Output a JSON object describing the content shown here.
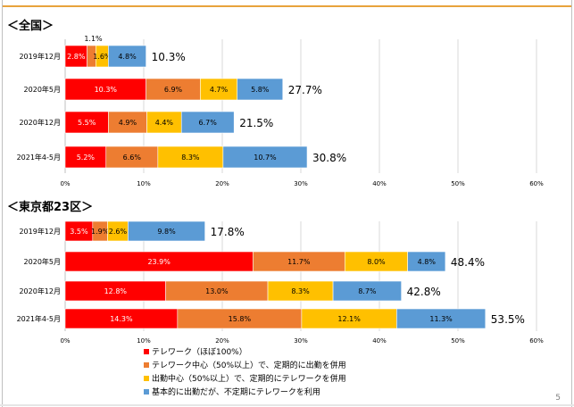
{
  "page_number": "5",
  "legend": [
    {
      "label": "テレワーク（ほぼ100%）",
      "color": "#ff0000"
    },
    {
      "label": "テレワーク中心（50%以上）で、定期的に出勤を併用",
      "color": "#ed7d31"
    },
    {
      "label": "出勤中心（50%以上）で、定期的にテレワークを併用",
      "color": "#ffc000"
    },
    {
      "label": "基本的に出勤だが、不定期にテレワークを利用",
      "color": "#5b9bd5"
    }
  ],
  "chart_data": [
    {
      "type": "bar",
      "orientation": "horizontal",
      "stacked": true,
      "title": "＜全国＞",
      "categories": [
        "2019年12月",
        "2020年5月",
        "2020年12月",
        "2021年4-5月"
      ],
      "series": [
        {
          "name": "テレワーク（ほぼ100%）",
          "values": [
            2.8,
            10.3,
            5.5,
            5.2
          ],
          "labels": [
            "2.8%",
            "10.3%",
            "5.5%",
            "5.2%"
          ]
        },
        {
          "name": "テレワーク中心（50%以上）で、定期的に出勤を併用",
          "values": [
            1.1,
            6.9,
            4.9,
            6.6
          ],
          "labels": [
            "1.1%",
            "6.9%",
            "4.9%",
            "6.6%"
          ]
        },
        {
          "name": "出勤中心（50%以上）で、定期的にテレワークを併用",
          "values": [
            1.6,
            4.7,
            4.4,
            8.3
          ],
          "labels": [
            "1.6%",
            "4.7%",
            "4.4%",
            "8.3%"
          ]
        },
        {
          "name": "基本的に出勤だが、不定期にテレワークを利用",
          "values": [
            4.8,
            5.8,
            6.7,
            10.7
          ],
          "labels": [
            "4.8%",
            "5.8%",
            "6.7%",
            "10.7%"
          ]
        }
      ],
      "totals": [
        "10.3%",
        "27.7%",
        "21.5%",
        "30.8%"
      ],
      "xlim": [
        0,
        60
      ],
      "xticks": [
        "0%",
        "10%",
        "20%",
        "30%",
        "40%",
        "50%",
        "60%"
      ],
      "grid": true
    },
    {
      "type": "bar",
      "orientation": "horizontal",
      "stacked": true,
      "title": "＜東京都23区＞",
      "categories": [
        "2019年12月",
        "2020年5月",
        "2020年12月",
        "2021年4-5月"
      ],
      "series": [
        {
          "name": "テレワーク（ほぼ100%）",
          "values": [
            3.5,
            23.9,
            12.8,
            14.3
          ],
          "labels": [
            "3.5%",
            "23.9%",
            "12.8%",
            "14.3%"
          ]
        },
        {
          "name": "テレワーク中心（50%以上）で、定期的に出勤を併用",
          "values": [
            1.9,
            11.7,
            13.0,
            15.8
          ],
          "labels": [
            "1.9%",
            "11.7%",
            "13.0%",
            "15.8%"
          ]
        },
        {
          "name": "出勤中心（50%以上）で、定期的にテレワークを併用",
          "values": [
            2.6,
            8.0,
            8.3,
            12.1
          ],
          "labels": [
            "2.6%",
            "8.0%",
            "8.3%",
            "12.1%"
          ]
        },
        {
          "name": "基本的に出勤だが、不定期にテレワークを利用",
          "values": [
            9.8,
            4.8,
            8.7,
            11.3
          ],
          "labels": [
            "9.8%",
            "4.8%",
            "8.7%",
            "11.3%"
          ]
        }
      ],
      "totals": [
        "17.8%",
        "48.4%",
        "42.8%",
        "53.5%"
      ],
      "xlim": [
        0,
        60
      ],
      "xticks": [
        "0%",
        "10%",
        "20%",
        "30%",
        "40%",
        "50%",
        "60%"
      ],
      "grid": true
    }
  ]
}
